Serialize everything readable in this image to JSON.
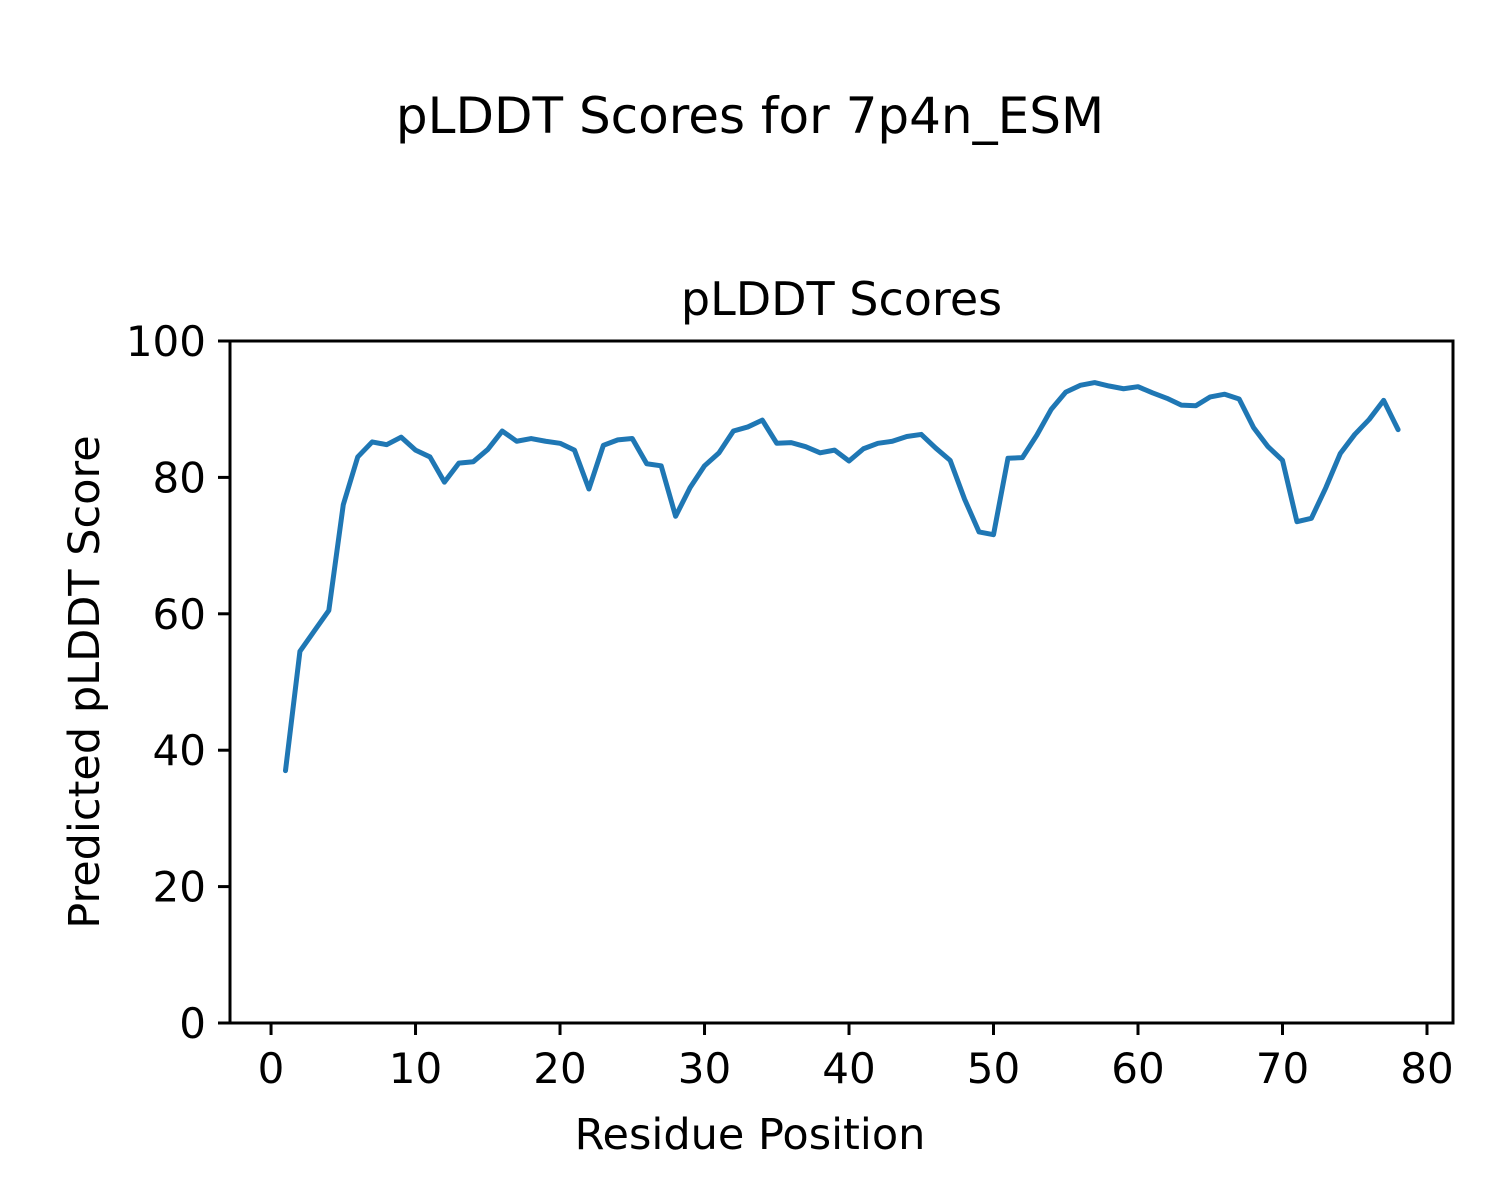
{
  "figure": {
    "suptitle": "pLDDT Scores for 7p4n_ESM"
  },
  "chart_data": {
    "type": "line",
    "title": "pLDDT Scores",
    "xlabel": "Residue Position",
    "ylabel": "Predicted pLDDT Score",
    "legend": "none",
    "grid": false,
    "line_color": "#1f77b4",
    "axis_color": "#000000",
    "xlim": [
      -2.84,
      81.8
    ],
    "ylim": [
      0,
      100
    ],
    "xticks": [
      0,
      10,
      20,
      30,
      40,
      50,
      60,
      70,
      80
    ],
    "yticks": [
      0,
      20,
      40,
      60,
      80,
      100
    ],
    "x": [
      1,
      2,
      3,
      4,
      5,
      6,
      7,
      8,
      9,
      10,
      11,
      12,
      13,
      14,
      15,
      16,
      17,
      18,
      19,
      20,
      21,
      22,
      23,
      24,
      25,
      26,
      27,
      28,
      29,
      30,
      31,
      32,
      33,
      34,
      35,
      36,
      37,
      38,
      39,
      40,
      41,
      42,
      43,
      44,
      45,
      46,
      47,
      48,
      49,
      50,
      51,
      52,
      53,
      54,
      55,
      56,
      57,
      58,
      59,
      60,
      61,
      62,
      63,
      64,
      65,
      66,
      67,
      68,
      69,
      70,
      71,
      72,
      73,
      74,
      75,
      76,
      77,
      78
    ],
    "values": [
      37.0,
      54.5,
      57.5,
      60.5,
      76.0,
      83.0,
      85.2,
      84.8,
      85.9,
      84.0,
      83.0,
      79.3,
      82.1,
      82.3,
      84.1,
      86.8,
      85.3,
      85.7,
      85.3,
      85.0,
      84.0,
      78.3,
      84.7,
      85.5,
      85.7,
      82.0,
      81.7,
      74.3,
      78.5,
      81.7,
      83.6,
      86.8,
      87.4,
      88.4,
      85.0,
      85.1,
      84.5,
      83.6,
      84.0,
      82.4,
      84.2,
      85.0,
      85.3,
      86.0,
      86.3,
      84.3,
      82.5,
      76.8,
      72.0,
      71.6,
      82.8,
      82.9,
      86.2,
      90.0,
      92.5,
      93.5,
      93.9,
      93.4,
      93.0,
      93.3,
      92.4,
      91.6,
      90.6,
      90.5,
      91.8,
      92.2,
      91.5,
      87.3,
      84.5,
      82.5,
      73.5,
      74.0,
      78.5,
      83.5,
      86.3,
      88.5,
      91.3,
      87.0
    ]
  }
}
